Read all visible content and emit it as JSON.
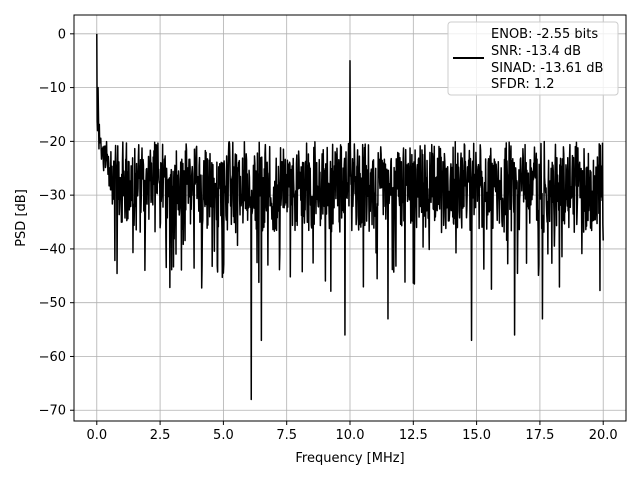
{
  "chart_data": {
    "type": "line",
    "xlabel": "Frequency [MHz]",
    "ylabel": "PSD [dB]",
    "xlim": [
      -0.9,
      20.9
    ],
    "ylim": [
      -72,
      3.5
    ],
    "xticks": [
      0.0,
      2.5,
      5.0,
      7.5,
      10.0,
      12.5,
      15.0,
      17.5,
      20.0
    ],
    "xtick_labels": [
      "0.0",
      "2.5",
      "5.0",
      "7.5",
      "10.0",
      "12.5",
      "15.0",
      "17.5",
      "20.0"
    ],
    "yticks": [
      0,
      -10,
      -20,
      -30,
      -40,
      -50,
      -60,
      -70
    ],
    "ytick_labels": [
      "0",
      "−10",
      "−20",
      "−30",
      "−40",
      "−50",
      "−60",
      "−70"
    ],
    "grid": true,
    "legend_position": "top-right",
    "series": [
      {
        "color": "#000000",
        "x_range": [
          0,
          20
        ],
        "noise_floor_db": -28,
        "noise_band_db": [
          -37,
          -20
        ],
        "notable_points": [
          {
            "x": 0.0,
            "y": 0.0
          },
          {
            "x": 0.05,
            "y": -10
          },
          {
            "x": 10.0,
            "y": -5
          },
          {
            "x": 6.1,
            "y": -68
          },
          {
            "x": 6.5,
            "y": -57
          },
          {
            "x": 9.8,
            "y": -56
          },
          {
            "x": 14.8,
            "y": -57
          },
          {
            "x": 11.5,
            "y": -53
          },
          {
            "x": 17.6,
            "y": -53
          },
          {
            "x": 16.5,
            "y": -56
          }
        ]
      }
    ],
    "legend": {
      "lines": [
        "ENOB: -2.55 bits",
        "SNR: -13.4 dB",
        "SINAD: -13.61 dB",
        "SFDR: 1.2"
      ]
    }
  }
}
